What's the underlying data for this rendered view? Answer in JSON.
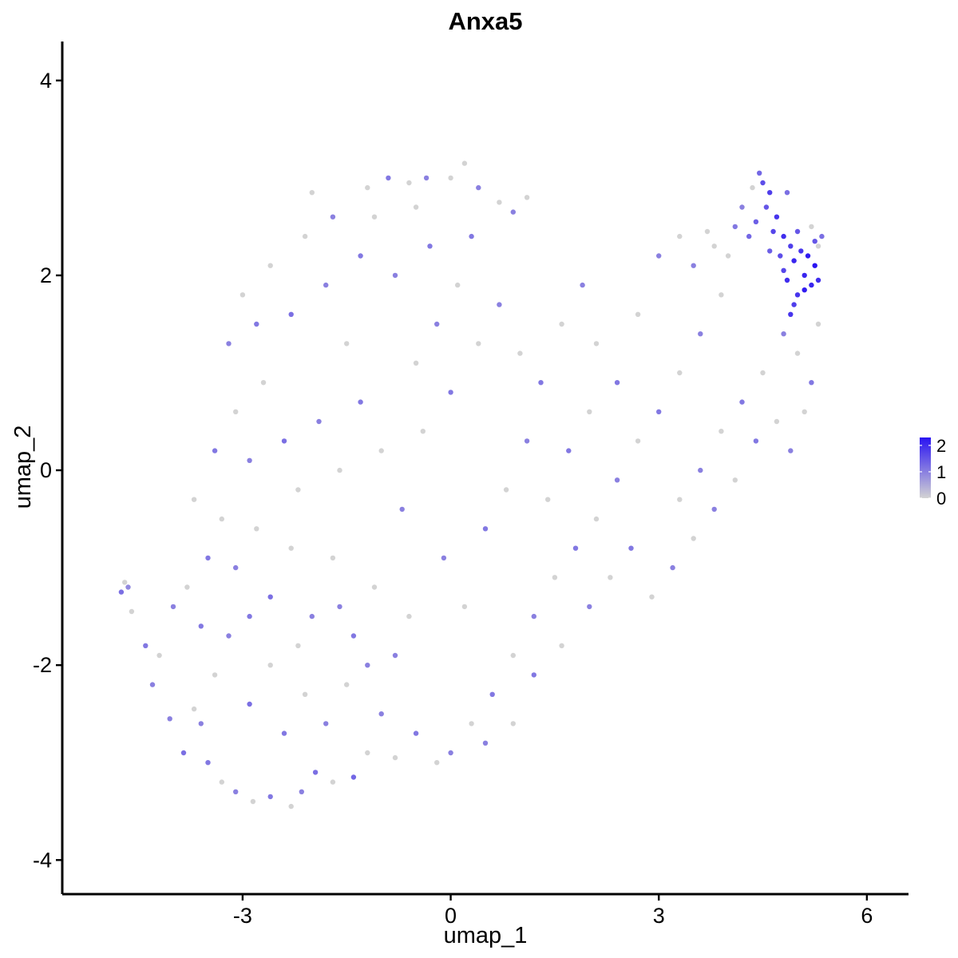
{
  "chart_data": {
    "type": "scatter",
    "title": "Anxa5",
    "xlabel": "umap_1",
    "ylabel": "umap_2",
    "xlim": [
      -5.6,
      6.6
    ],
    "ylim": [
      -4.35,
      4.4
    ],
    "x_ticks": [
      "-3",
      "0",
      "3",
      "6"
    ],
    "x_tick_values": [
      -3,
      0,
      3,
      6
    ],
    "y_ticks": [
      "-4",
      "-2",
      "0",
      "2",
      "4"
    ],
    "y_tick_values": [
      -4,
      -2,
      0,
      2,
      4
    ],
    "grid": false,
    "color_scale": {
      "low": "#D3D3D3",
      "high": "#2A14F2",
      "min": 0,
      "max": 2.3,
      "labels": [
        "0",
        "1",
        "2"
      ],
      "label_values": [
        0,
        1,
        2
      ]
    },
    "legend_position": "right",
    "points": [
      [
        -4.75,
        -1.25,
        1.2
      ],
      [
        -4.65,
        -1.2,
        0.9
      ],
      [
        -4.7,
        -1.15,
        0
      ],
      [
        -4.6,
        -1.45,
        0
      ],
      [
        -4.4,
        -1.8,
        1.1
      ],
      [
        -4.3,
        -2.2,
        1.0
      ],
      [
        -4.2,
        -1.9,
        0
      ],
      [
        -4.05,
        -2.55,
        1.0
      ],
      [
        -3.85,
        -2.9,
        1.2
      ],
      [
        -3.7,
        -2.45,
        0
      ],
      [
        -3.5,
        -3.0,
        1.1
      ],
      [
        -3.3,
        -3.2,
        0
      ],
      [
        -3.1,
        -3.3,
        1.0
      ],
      [
        -2.85,
        -3.4,
        0
      ],
      [
        -2.6,
        -3.35,
        1.1
      ],
      [
        -2.3,
        -3.45,
        0
      ],
      [
        -2.15,
        -3.3,
        1.0
      ],
      [
        -1.95,
        -3.1,
        1.2
      ],
      [
        -1.7,
        -3.2,
        0
      ],
      [
        -1.4,
        -3.15,
        1.3
      ],
      [
        -1.2,
        -2.9,
        0
      ],
      [
        -4.0,
        -1.4,
        1.0
      ],
      [
        -3.8,
        -1.2,
        0
      ],
      [
        -3.6,
        -1.6,
        1.1
      ],
      [
        -3.4,
        -2.1,
        0
      ],
      [
        -3.2,
        -1.7,
        1.0
      ],
      [
        -2.9,
        -2.4,
        1.2
      ],
      [
        -2.6,
        -2.0,
        0
      ],
      [
        -2.4,
        -2.7,
        1.1
      ],
      [
        -2.1,
        -2.3,
        0
      ],
      [
        -1.8,
        -2.6,
        1.0
      ],
      [
        -1.5,
        -2.2,
        0
      ],
      [
        -3.7,
        -0.3,
        0
      ],
      [
        -3.5,
        -0.9,
        1.1
      ],
      [
        -3.3,
        -0.5,
        0
      ],
      [
        -3.1,
        -1.0,
        1.0
      ],
      [
        -2.8,
        -0.6,
        0
      ],
      [
        -2.6,
        -1.3,
        1.2
      ],
      [
        -2.3,
        -0.8,
        0
      ],
      [
        -2.0,
        -1.5,
        1.0
      ],
      [
        -1.7,
        -0.9,
        0
      ],
      [
        -1.4,
        -1.7,
        1.1
      ],
      [
        -1.1,
        -1.2,
        0
      ],
      [
        -0.8,
        -1.9,
        1.0
      ],
      [
        -3.4,
        0.2,
        1.1
      ],
      [
        -3.1,
        0.6,
        0
      ],
      [
        -2.9,
        0.1,
        1.0
      ],
      [
        -2.7,
        0.9,
        0
      ],
      [
        -2.4,
        0.3,
        1.2
      ],
      [
        -2.2,
        -0.2,
        0
      ],
      [
        -1.9,
        0.5,
        1.0
      ],
      [
        -1.6,
        0.0,
        0
      ],
      [
        -1.3,
        0.7,
        1.1
      ],
      [
        -1.0,
        0.2,
        0
      ],
      [
        -0.7,
        -0.4,
        1.0
      ],
      [
        -0.4,
        0.4,
        0
      ],
      [
        -3.2,
        1.3,
        1.0
      ],
      [
        -3.0,
        1.8,
        0
      ],
      [
        -2.8,
        1.5,
        1.1
      ],
      [
        -2.6,
        2.1,
        0
      ],
      [
        -2.3,
        1.6,
        1.2
      ],
      [
        -2.1,
        2.4,
        0
      ],
      [
        -1.8,
        1.9,
        1.0
      ],
      [
        -1.5,
        1.3,
        0
      ],
      [
        -1.3,
        2.2,
        1.1
      ],
      [
        -1.1,
        2.6,
        0
      ],
      [
        -0.8,
        2.0,
        1.0
      ],
      [
        -0.5,
        2.7,
        0
      ],
      [
        -0.3,
        2.3,
        1.1
      ],
      [
        -2.0,
        2.85,
        0
      ],
      [
        -1.7,
        2.6,
        1.0
      ],
      [
        -1.2,
        2.9,
        0
      ],
      [
        -0.9,
        3.0,
        1.1
      ],
      [
        -0.6,
        2.95,
        0
      ],
      [
        -0.35,
        3.0,
        1.0
      ],
      [
        0.0,
        3.0,
        0
      ],
      [
        0.2,
        3.15,
        0
      ],
      [
        0.4,
        2.9,
        1.0
      ],
      [
        0.7,
        2.75,
        0
      ],
      [
        0.9,
        2.65,
        1.0
      ],
      [
        1.1,
        2.8,
        0
      ],
      [
        0.3,
        2.4,
        1.1
      ],
      [
        0.1,
        1.9,
        0
      ],
      [
        -0.2,
        1.5,
        1.0
      ],
      [
        -0.5,
        1.1,
        0
      ],
      [
        0.0,
        0.8,
        1.1
      ],
      [
        0.4,
        1.3,
        0
      ],
      [
        0.7,
        1.7,
        1.0
      ],
      [
        1.0,
        1.2,
        0
      ],
      [
        1.3,
        0.9,
        1.1
      ],
      [
        1.6,
        1.5,
        0
      ],
      [
        1.9,
        1.9,
        1.0
      ],
      [
        2.1,
        1.3,
        0
      ],
      [
        2.4,
        0.9,
        1.1
      ],
      [
        2.7,
        1.6,
        0
      ],
      [
        3.0,
        2.2,
        1.0
      ],
      [
        3.3,
        2.4,
        0
      ],
      [
        3.5,
        2.1,
        1.0
      ],
      [
        3.8,
        2.3,
        0
      ],
      [
        4.1,
        2.5,
        1.1
      ],
      [
        3.9,
        1.8,
        0
      ],
      [
        3.6,
        1.4,
        1.0
      ],
      [
        3.3,
        1.0,
        0
      ],
      [
        3.0,
        0.6,
        1.1
      ],
      [
        2.7,
        0.3,
        0
      ],
      [
        2.4,
        -0.1,
        1.0
      ],
      [
        2.1,
        -0.5,
        0
      ],
      [
        1.8,
        -0.8,
        1.1
      ],
      [
        1.5,
        -1.1,
        0
      ],
      [
        1.2,
        -1.5,
        1.0
      ],
      [
        0.9,
        -1.9,
        0
      ],
      [
        0.6,
        -2.3,
        1.1
      ],
      [
        0.3,
        -2.6,
        0
      ],
      [
        0.0,
        -2.9,
        1.0
      ],
      [
        -0.2,
        -3.0,
        0
      ],
      [
        -0.5,
        -2.7,
        1.1
      ],
      [
        -0.8,
        -2.95,
        0
      ],
      [
        -1.0,
        -2.5,
        1.0
      ],
      [
        0.5,
        -2.8,
        1.0
      ],
      [
        0.9,
        -2.6,
        0
      ],
      [
        1.2,
        -2.1,
        1.1
      ],
      [
        1.6,
        -1.8,
        0
      ],
      [
        2.0,
        -1.4,
        1.0
      ],
      [
        2.3,
        -1.1,
        0
      ],
      [
        2.6,
        -0.8,
        1.1
      ],
      [
        2.9,
        -1.3,
        0
      ],
      [
        3.2,
        -1.0,
        1.0
      ],
      [
        3.5,
        -0.7,
        0
      ],
      [
        3.8,
        -0.4,
        1.0
      ],
      [
        4.1,
        -0.1,
        0
      ],
      [
        4.4,
        0.3,
        1.1
      ],
      [
        4.7,
        0.5,
        0
      ],
      [
        4.9,
        0.2,
        1.0
      ],
      [
        5.1,
        0.6,
        0
      ],
      [
        5.2,
        0.9,
        1.1
      ],
      [
        5.0,
        1.2,
        0
      ],
      [
        4.8,
        1.4,
        1.0
      ],
      [
        4.5,
        1.0,
        0
      ],
      [
        4.2,
        0.7,
        1.1
      ],
      [
        3.9,
        0.4,
        0
      ],
      [
        3.6,
        0.0,
        1.0
      ],
      [
        3.3,
        -0.3,
        0
      ],
      [
        -0.1,
        -0.9,
        1.0
      ],
      [
        0.2,
        -1.4,
        0
      ],
      [
        0.5,
        -0.6,
        1.1
      ],
      [
        0.8,
        -0.2,
        0
      ],
      [
        1.1,
        0.3,
        1.0
      ],
      [
        1.4,
        -0.3,
        0
      ],
      [
        1.7,
        0.2,
        1.1
      ],
      [
        2.0,
        0.6,
        0
      ],
      [
        -1.6,
        -1.4,
        1.0
      ],
      [
        -2.2,
        -1.8,
        0
      ],
      [
        -2.9,
        -1.5,
        1.1
      ],
      [
        -3.6,
        -2.6,
        1.0
      ],
      [
        -1.2,
        -2.0,
        1.0
      ],
      [
        -0.6,
        -1.5,
        0
      ],
      [
        4.45,
        3.05,
        1.3
      ],
      [
        4.5,
        2.95,
        1.6
      ],
      [
        4.6,
        2.85,
        1.8
      ],
      [
        4.55,
        2.7,
        1.5
      ],
      [
        4.7,
        2.6,
        1.9
      ],
      [
        4.4,
        2.55,
        1.4
      ],
      [
        4.65,
        2.45,
        1.7
      ],
      [
        4.8,
        2.4,
        2.0
      ],
      [
        4.9,
        2.3,
        1.8
      ],
      [
        4.75,
        2.2,
        1.6
      ],
      [
        4.95,
        2.15,
        2.1
      ],
      [
        5.05,
        2.25,
        1.9
      ],
      [
        5.15,
        2.2,
        2.2
      ],
      [
        5.25,
        2.1,
        2.3
      ],
      [
        5.3,
        1.95,
        2.0
      ],
      [
        5.2,
        1.9,
        2.1
      ],
      [
        5.1,
        1.85,
        2.2
      ],
      [
        5.0,
        1.8,
        1.9
      ],
      [
        4.95,
        1.7,
        1.8
      ],
      [
        4.85,
        1.95,
        2.0
      ],
      [
        4.8,
        2.05,
        1.7
      ],
      [
        4.9,
        1.6,
        1.9
      ],
      [
        5.35,
        2.4,
        1.2
      ],
      [
        5.25,
        2.35,
        1.5
      ],
      [
        4.3,
        2.4,
        1.3
      ],
      [
        4.2,
        2.7,
        1.0
      ],
      [
        4.85,
        2.85,
        1.2
      ],
      [
        5.0,
        2.45,
        1.5
      ],
      [
        4.6,
        2.25,
        1.4
      ],
      [
        5.1,
        2.0,
        2.1
      ],
      [
        5.3,
        2.3,
        0
      ],
      [
        5.2,
        2.5,
        0
      ],
      [
        4.35,
        2.9,
        0
      ],
      [
        4.0,
        2.2,
        0
      ],
      [
        3.7,
        2.45,
        0
      ],
      [
        5.3,
        1.5,
        0
      ]
    ]
  }
}
